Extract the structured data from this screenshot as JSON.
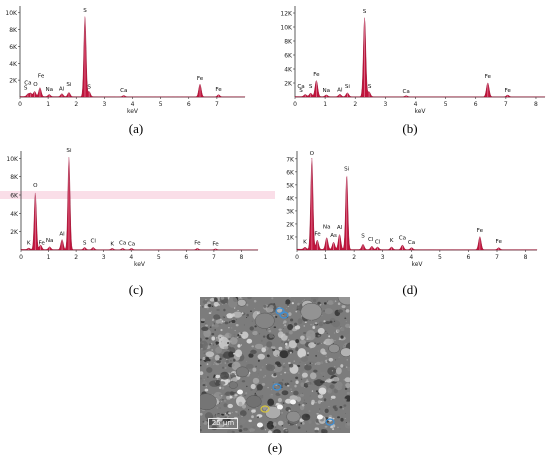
{
  "chart_data": [
    {
      "type": "line",
      "panel_label": "(a)",
      "xlabel": "keV",
      "xlim": [
        0,
        8
      ],
      "ylim": [
        0,
        10800
      ],
      "xticks": [
        "0",
        "1",
        "2",
        "3",
        "4",
        "5",
        "6",
        "7"
      ],
      "yticks": [
        "2K",
        "4K",
        "6K",
        "8K",
        "10K"
      ],
      "ytick_values": [
        2000,
        4000,
        6000,
        8000,
        10000
      ],
      "peaks": [
        {
          "x": 0.28,
          "y": 300
        },
        {
          "x": 0.38,
          "y": 400
        },
        {
          "x": 0.52,
          "y": 600
        },
        {
          "x": 0.71,
          "y": 1050
        },
        {
          "x": 1.04,
          "y": 250
        },
        {
          "x": 1.49,
          "y": 350
        },
        {
          "x": 1.74,
          "y": 500
        },
        {
          "x": 2.31,
          "y": 9600
        },
        {
          "x": 2.46,
          "y": 600
        },
        {
          "x": 3.69,
          "y": 150
        },
        {
          "x": 6.4,
          "y": 1500
        },
        {
          "x": 7.06,
          "y": 250
        }
      ],
      "annotations": [
        {
          "text": "S",
          "x": 0.2,
          "y": 900
        },
        {
          "text": "Ca",
          "x": 0.28,
          "y": 1500
        },
        {
          "text": "O",
          "x": 0.55,
          "y": 1300
        },
        {
          "text": "Fe",
          "x": 0.75,
          "y": 2300
        },
        {
          "text": "Na",
          "x": 1.04,
          "y": 700
        },
        {
          "text": "Al",
          "x": 1.48,
          "y": 800
        },
        {
          "text": "Si",
          "x": 1.74,
          "y": 1300
        },
        {
          "text": "S",
          "x": 2.31,
          "y": 10100
        },
        {
          "text": "S",
          "x": 2.46,
          "y": 1000
        },
        {
          "text": "Ca",
          "x": 3.69,
          "y": 600
        },
        {
          "text": "Fe",
          "x": 6.4,
          "y": 2000
        },
        {
          "text": "Fe",
          "x": 7.06,
          "y": 700
        }
      ]
    },
    {
      "type": "line",
      "panel_label": "(b)",
      "xlabel": "keV",
      "xlim": [
        0,
        8.3
      ],
      "ylim": [
        0,
        13000
      ],
      "xticks": [
        "0",
        "1",
        "2",
        "3",
        "4",
        "5",
        "6",
        "7",
        "8"
      ],
      "yticks": [
        "2K",
        "4K",
        "6K",
        "8K",
        "10K",
        "12K"
      ],
      "ytick_values": [
        2000,
        4000,
        6000,
        8000,
        10000,
        12000
      ],
      "peaks": [
        {
          "x": 0.34,
          "y": 300
        },
        {
          "x": 0.52,
          "y": 500
        },
        {
          "x": 0.71,
          "y": 2300
        },
        {
          "x": 1.04,
          "y": 250
        },
        {
          "x": 1.49,
          "y": 350
        },
        {
          "x": 1.74,
          "y": 550
        },
        {
          "x": 2.31,
          "y": 11300
        },
        {
          "x": 2.46,
          "y": 700
        },
        {
          "x": 3.69,
          "y": 150
        },
        {
          "x": 6.4,
          "y": 2000
        },
        {
          "x": 7.06,
          "y": 250
        }
      ],
      "annotations": [
        {
          "text": "Ca",
          "x": 0.2,
          "y": 1300
        },
        {
          "text": "S",
          "x": 0.2,
          "y": 700
        },
        {
          "text": "S",
          "x": 0.52,
          "y": 1300
        },
        {
          "text": "Fe",
          "x": 0.71,
          "y": 3000
        },
        {
          "text": "Na",
          "x": 1.04,
          "y": 700
        },
        {
          "text": "Al",
          "x": 1.49,
          "y": 800
        },
        {
          "text": "Si",
          "x": 1.74,
          "y": 1300
        },
        {
          "text": "S",
          "x": 2.31,
          "y": 12000
        },
        {
          "text": "S",
          "x": 2.48,
          "y": 1300
        },
        {
          "text": "Ca",
          "x": 3.69,
          "y": 600
        },
        {
          "text": "Fe",
          "x": 6.4,
          "y": 2700
        },
        {
          "text": "Fe",
          "x": 7.06,
          "y": 700
        }
      ]
    },
    {
      "type": "line",
      "panel_label": "(c)",
      "xlabel": "keV",
      "xlim": [
        0,
        8.6
      ],
      "ylim": [
        0,
        10800
      ],
      "xticks": [
        "0",
        "1",
        "2",
        "3",
        "4",
        "5",
        "6",
        "7",
        "8"
      ],
      "yticks": [
        "2K",
        "4K",
        "6K",
        "8K",
        "10K"
      ],
      "ytick_values": [
        2000,
        4000,
        6000,
        8000,
        10000
      ],
      "peaks": [
        {
          "x": 0.28,
          "y": 150
        },
        {
          "x": 0.52,
          "y": 6200
        },
        {
          "x": 0.71,
          "y": 500
        },
        {
          "x": 1.04,
          "y": 300
        },
        {
          "x": 1.49,
          "y": 1100
        },
        {
          "x": 1.74,
          "y": 10100
        },
        {
          "x": 2.31,
          "y": 250
        },
        {
          "x": 2.62,
          "y": 250
        },
        {
          "x": 3.31,
          "y": 150
        },
        {
          "x": 3.69,
          "y": 150
        },
        {
          "x": 4.01,
          "y": 150
        },
        {
          "x": 6.4,
          "y": 150
        },
        {
          "x": 7.06,
          "y": 100
        }
      ],
      "annotations": [
        {
          "text": "K",
          "x": 0.28,
          "y": 600
        },
        {
          "text": "O",
          "x": 0.52,
          "y": 6900
        },
        {
          "text": "Fe",
          "x": 0.75,
          "y": 600
        },
        {
          "text": "Na",
          "x": 1.04,
          "y": 900
        },
        {
          "text": "Al",
          "x": 1.49,
          "y": 1600
        },
        {
          "text": "Si",
          "x": 1.74,
          "y": 10700
        },
        {
          "text": "S",
          "x": 2.31,
          "y": 600
        },
        {
          "text": "Cl",
          "x": 2.62,
          "y": 800
        },
        {
          "text": "K",
          "x": 3.31,
          "y": 500
        },
        {
          "text": "Ca",
          "x": 3.69,
          "y": 600
        },
        {
          "text": "Ca",
          "x": 4.01,
          "y": 500
        },
        {
          "text": "Fe",
          "x": 6.4,
          "y": 600
        },
        {
          "text": "Fe",
          "x": 7.06,
          "y": 500
        }
      ]
    },
    {
      "type": "line",
      "panel_label": "(d)",
      "xlabel": "keV",
      "xlim": [
        0,
        8.4
      ],
      "ylim": [
        0,
        7600
      ],
      "xticks": [
        "0",
        "1",
        "2",
        "3",
        "4",
        "5",
        "6",
        "7",
        "8"
      ],
      "yticks": [
        "1K",
        "2K",
        "3K",
        "4K",
        "5K",
        "6K",
        "7K"
      ],
      "ytick_values": [
        1000,
        2000,
        3000,
        4000,
        5000,
        6000,
        7000
      ],
      "peaks": [
        {
          "x": 0.28,
          "y": 150
        },
        {
          "x": 0.52,
          "y": 7000
        },
        {
          "x": 0.71,
          "y": 700
        },
        {
          "x": 1.04,
          "y": 900
        },
        {
          "x": 1.28,
          "y": 550
        },
        {
          "x": 1.49,
          "y": 1150
        },
        {
          "x": 1.74,
          "y": 5700
        },
        {
          "x": 2.31,
          "y": 400
        },
        {
          "x": 2.62,
          "y": 250
        },
        {
          "x": 2.82,
          "y": 200
        },
        {
          "x": 3.31,
          "y": 200
        },
        {
          "x": 3.69,
          "y": 350
        },
        {
          "x": 4.01,
          "y": 150
        },
        {
          "x": 6.4,
          "y": 1000
        },
        {
          "x": 7.06,
          "y": 150
        }
      ],
      "annotations": [
        {
          "text": "K",
          "x": 0.28,
          "y": 500
        },
        {
          "text": "O",
          "x": 0.52,
          "y": 7300
        },
        {
          "text": "Fe",
          "x": 0.72,
          "y": 1100
        },
        {
          "text": "Na",
          "x": 1.04,
          "y": 1650
        },
        {
          "text": "As",
          "x": 1.28,
          "y": 1000
        },
        {
          "text": "Al",
          "x": 1.49,
          "y": 1600
        },
        {
          "text": "Si",
          "x": 1.74,
          "y": 6100
        },
        {
          "text": "S",
          "x": 2.31,
          "y": 950
        },
        {
          "text": "Cl",
          "x": 2.58,
          "y": 700
        },
        {
          "text": "Cl",
          "x": 2.82,
          "y": 500
        },
        {
          "text": "K",
          "x": 3.31,
          "y": 600
        },
        {
          "text": "Ca",
          "x": 3.69,
          "y": 800
        },
        {
          "text": "Ca",
          "x": 4.01,
          "y": 450
        },
        {
          "text": "Fe",
          "x": 6.4,
          "y": 1400
        },
        {
          "text": "Fe",
          "x": 7.06,
          "y": 550
        }
      ]
    }
  ],
  "micrograph": {
    "caption": "(e)",
    "scale_label": "25 µm"
  },
  "colors": {
    "peak_fill": "#c0143c",
    "peak_stroke": "#8a0a28",
    "axis": "#333333",
    "baseline": "#d0d0d0",
    "grid": "#f3c6d3",
    "peak_glow": "#f5b5cc"
  }
}
